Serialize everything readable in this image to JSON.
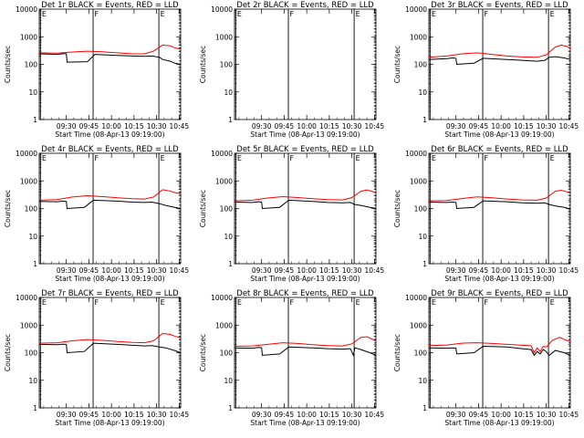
{
  "colors": {
    "events": "#000000",
    "lld": "#ff0000",
    "axis": "#000000",
    "background": "#ffffff"
  },
  "chart_data": [
    {
      "type": "line",
      "title": "Det 1r BLACK = Events, RED = LLD",
      "xlabel": "Start Time (08-Apr-13 09:19:00)",
      "ylabel": "Counts/sec",
      "x_ticks": [
        "09:30",
        "09:45",
        "10:00",
        "10:15",
        "10:30",
        "10:45"
      ],
      "y_ticks": [
        "1",
        "10",
        "100",
        "1000",
        "10000"
      ],
      "yscale": "log",
      "ylim": [
        1,
        10000
      ],
      "xlim_min": [
        8,
        102
      ],
      "x_tick_min": [
        26,
        41,
        56,
        71,
        86,
        101
      ],
      "series": [
        {
          "x": [
            8,
            20,
            24,
            26,
            26.5,
            40,
            45,
            60,
            70,
            78,
            83,
            88,
            90,
            95,
            98,
            102
          ],
          "y": [
            240,
            230,
            245,
            240,
            120,
            125,
            230,
            210,
            200,
            195,
            200,
            180,
            150,
            130,
            110,
            100
          ]
        },
        {
          "x": [
            8,
            20,
            30,
            40,
            50,
            60,
            70,
            78,
            84,
            90,
            95,
            98,
            102
          ],
          "y": [
            260,
            255,
            280,
            300,
            285,
            260,
            240,
            240,
            300,
            500,
            470,
            400,
            350
          ]
        }
      ],
      "markers": [
        {
          "label": "E",
          "x": 8.8,
          "style": "solid"
        },
        {
          "label": "F",
          "x": 43.8,
          "style": "solid"
        },
        {
          "label": "E",
          "x": 87.5,
          "style": "solid"
        },
        {
          "label": "",
          "x": 102.5,
          "style": "dotted"
        }
      ]
    },
    {
      "type": "line",
      "title": "Det 2r BLACK = Events, RED = LLD",
      "xlabel": "Start Time (08-Apr-13 09:19:00)",
      "ylabel": "Counts/sec",
      "x_ticks": [
        "09:30",
        "09:45",
        "10:00",
        "10:15",
        "10:30",
        "10:45"
      ],
      "y_ticks": [
        "1",
        "10",
        "100",
        "1000",
        "10000"
      ],
      "yscale": "log",
      "ylim": [
        1,
        10000
      ],
      "xlim_min": [
        8,
        102
      ],
      "x_tick_min": [
        26,
        41,
        56,
        71,
        86,
        101
      ],
      "series": [],
      "markers": [
        {
          "label": "E",
          "x": 8.8,
          "style": "solid"
        },
        {
          "label": "F",
          "x": 43.8,
          "style": "solid"
        },
        {
          "label": "E",
          "x": 87.5,
          "style": "solid"
        },
        {
          "label": "",
          "x": 102.5,
          "style": "dotted"
        }
      ]
    },
    {
      "type": "line",
      "title": "Det 3r BLACK = Events, RED = LLD",
      "xlabel": "Start Time (08-Apr-13 09:19:00)",
      "ylabel": "Counts/sec",
      "x_ticks": [
        "09:30",
        "09:45",
        "10:00",
        "10:15",
        "10:30",
        "10:45"
      ],
      "y_ticks": [
        "1",
        "10",
        "100",
        "1000",
        "10000"
      ],
      "yscale": "log",
      "ylim": [
        1,
        10000
      ],
      "xlim_min": [
        8,
        102
      ],
      "x_tick_min": [
        26,
        41,
        56,
        71,
        86,
        101
      ],
      "series": [
        {
          "x": [
            8,
            20,
            24,
            26,
            26.5,
            38,
            44,
            60,
            70,
            80,
            85,
            88,
            92,
            98,
            102
          ],
          "y": [
            150,
            160,
            170,
            165,
            100,
            110,
            165,
            150,
            140,
            130,
            140,
            180,
            190,
            170,
            150
          ]
        },
        {
          "x": [
            8,
            20,
            30,
            40,
            50,
            60,
            70,
            80,
            86,
            92,
            96,
            100,
            102
          ],
          "y": [
            180,
            200,
            240,
            260,
            230,
            200,
            185,
            180,
            220,
            420,
            500,
            440,
            380
          ]
        }
      ],
      "markers": [
        {
          "label": "E",
          "x": 8.8,
          "style": "solid"
        },
        {
          "label": "F",
          "x": 43.8,
          "style": "solid"
        },
        {
          "label": "E",
          "x": 87.5,
          "style": "solid"
        },
        {
          "label": "",
          "x": 102.5,
          "style": "dotted"
        }
      ]
    },
    {
      "type": "line",
      "title": "Det 4r BLACK = Events, RED = LLD",
      "xlabel": "Start Time (08-Apr-13 09:19:00)",
      "ylabel": "Counts/sec",
      "x_ticks": [
        "09:30",
        "09:45",
        "10:00",
        "10:15",
        "10:30",
        "10:45"
      ],
      "y_ticks": [
        "1",
        "10",
        "100",
        "1000",
        "10000"
      ],
      "yscale": "log",
      "ylim": [
        1,
        10000
      ],
      "xlim_min": [
        8,
        102
      ],
      "x_tick_min": [
        26,
        41,
        56,
        71,
        86,
        101
      ],
      "series": [
        {
          "x": [
            8,
            20,
            24,
            26,
            26.5,
            38,
            44,
            60,
            70,
            78,
            83,
            88,
            92,
            98,
            102
          ],
          "y": [
            180,
            175,
            185,
            180,
            100,
            110,
            200,
            185,
            170,
            165,
            170,
            150,
            130,
            110,
            100
          ]
        },
        {
          "x": [
            8,
            20,
            30,
            40,
            50,
            60,
            70,
            78,
            84,
            90,
            95,
            98,
            102
          ],
          "y": [
            200,
            210,
            260,
            290,
            270,
            245,
            225,
            220,
            260,
            480,
            430,
            380,
            340
          ]
        }
      ],
      "markers": [
        {
          "label": "E",
          "x": 8.8,
          "style": "solid"
        },
        {
          "label": "F",
          "x": 43.8,
          "style": "solid"
        },
        {
          "label": "E",
          "x": 87.5,
          "style": "solid"
        },
        {
          "label": "",
          "x": 102.5,
          "style": "dotted"
        }
      ]
    },
    {
      "type": "line",
      "title": "Det 5r BLACK = Events, RED = LLD",
      "xlabel": "Start Time (08-Apr-13 09:19:00)",
      "ylabel": "Counts/sec",
      "x_ticks": [
        "09:30",
        "09:45",
        "10:00",
        "10:15",
        "10:30",
        "10:45"
      ],
      "y_ticks": [
        "1",
        "10",
        "100",
        "1000",
        "10000"
      ],
      "yscale": "log",
      "ylim": [
        1,
        10000
      ],
      "xlim_min": [
        8,
        102
      ],
      "x_tick_min": [
        26,
        41,
        56,
        71,
        86,
        101
      ],
      "series": [
        {
          "x": [
            8,
            20,
            24,
            26,
            26.5,
            38,
            44,
            60,
            70,
            80,
            85,
            88,
            92,
            98,
            102
          ],
          "y": [
            170,
            165,
            175,
            170,
            100,
            110,
            200,
            180,
            165,
            160,
            165,
            140,
            130,
            110,
            100
          ]
        },
        {
          "x": [
            8,
            20,
            30,
            40,
            50,
            60,
            70,
            80,
            86,
            92,
            96,
            100,
            102
          ],
          "y": [
            190,
            200,
            240,
            270,
            250,
            225,
            210,
            205,
            250,
            420,
            470,
            410,
            370
          ]
        }
      ],
      "markers": [
        {
          "label": "E",
          "x": 8.8,
          "style": "solid"
        },
        {
          "label": "F",
          "x": 43.8,
          "style": "solid"
        },
        {
          "label": "E",
          "x": 87.5,
          "style": "solid"
        },
        {
          "label": "",
          "x": 102.5,
          "style": "dotted"
        }
      ]
    },
    {
      "type": "line",
      "title": "Det 6r BLACK = Events, RED = LLD",
      "xlabel": "Start Time (08-Apr-13 09:19:00)",
      "ylabel": "Counts/sec",
      "x_ticks": [
        "09:30",
        "09:45",
        "10:00",
        "10:15",
        "10:30",
        "10:45"
      ],
      "y_ticks": [
        "1",
        "10",
        "100",
        "1000",
        "10000"
      ],
      "yscale": "log",
      "ylim": [
        1,
        10000
      ],
      "xlim_min": [
        8,
        102
      ],
      "x_tick_min": [
        26,
        41,
        56,
        71,
        86,
        101
      ],
      "series": [
        {
          "x": [
            8,
            20,
            24,
            26,
            26.5,
            38,
            44,
            60,
            70,
            80,
            85,
            88,
            92,
            98,
            102
          ],
          "y": [
            170,
            165,
            170,
            165,
            100,
            110,
            190,
            175,
            160,
            155,
            160,
            140,
            125,
            110,
            95
          ]
        },
        {
          "x": [
            8,
            20,
            30,
            40,
            50,
            60,
            70,
            80,
            86,
            92,
            96,
            100,
            102
          ],
          "y": [
            190,
            195,
            230,
            265,
            245,
            220,
            205,
            200,
            240,
            420,
            460,
            400,
            360
          ]
        }
      ],
      "markers": [
        {
          "label": "E",
          "x": 8.8,
          "style": "solid"
        },
        {
          "label": "F",
          "x": 43.8,
          "style": "solid"
        },
        {
          "label": "E",
          "x": 87.5,
          "style": "solid"
        },
        {
          "label": "",
          "x": 102.5,
          "style": "dotted"
        }
      ]
    },
    {
      "type": "line",
      "title": "Det 7r BLACK = Events, RED = LLD",
      "xlabel": "Start Time (08-Apr-13 09:19:00)",
      "ylabel": "Counts/sec",
      "x_ticks": [
        "09:30",
        "09:45",
        "10:00",
        "10:15",
        "10:30",
        "10:45"
      ],
      "y_ticks": [
        "1",
        "10",
        "100",
        "1000",
        "10000"
      ],
      "yscale": "log",
      "ylim": [
        1,
        10000
      ],
      "xlim_min": [
        8,
        102
      ],
      "x_tick_min": [
        26,
        41,
        56,
        71,
        86,
        101
      ],
      "series": [
        {
          "x": [
            8,
            20,
            24,
            26,
            26.5,
            38,
            44,
            60,
            70,
            78,
            83,
            88,
            92,
            98,
            102
          ],
          "y": [
            200,
            195,
            205,
            200,
            100,
            110,
            220,
            200,
            185,
            175,
            180,
            160,
            150,
            120,
            100
          ]
        },
        {
          "x": [
            8,
            20,
            30,
            40,
            50,
            60,
            70,
            78,
            84,
            90,
            95,
            98,
            102
          ],
          "y": [
            220,
            230,
            270,
            300,
            280,
            255,
            235,
            230,
            270,
            500,
            460,
            400,
            340
          ]
        }
      ],
      "markers": [
        {
          "label": "E",
          "x": 8.8,
          "style": "solid"
        },
        {
          "label": "F",
          "x": 43.8,
          "style": "solid"
        },
        {
          "label": "E",
          "x": 87.5,
          "style": "solid"
        },
        {
          "label": "",
          "x": 102.5,
          "style": "dotted"
        }
      ]
    },
    {
      "type": "line",
      "title": "Det 8r BLACK = Events, RED = LLD",
      "xlabel": "Start Time (08-Apr-13 09:19:00)",
      "ylabel": "Counts/sec",
      "x_ticks": [
        "09:30",
        "09:45",
        "10:00",
        "10:15",
        "10:30",
        "10:45"
      ],
      "y_ticks": [
        "1",
        "10",
        "100",
        "1000",
        "10000"
      ],
      "yscale": "log",
      "ylim": [
        1,
        10000
      ],
      "xlim_min": [
        8,
        102
      ],
      "x_tick_min": [
        26,
        41,
        56,
        71,
        86,
        101
      ],
      "series": [
        {
          "x": [
            8,
            20,
            24,
            26,
            26.5,
            38,
            44,
            60,
            70,
            80,
            85,
            87,
            88,
            92,
            98,
            102
          ],
          "y": [
            150,
            145,
            155,
            150,
            80,
            90,
            160,
            150,
            140,
            135,
            140,
            80,
            150,
            130,
            100,
            80
          ]
        },
        {
          "x": [
            8,
            20,
            30,
            40,
            50,
            60,
            70,
            80,
            86,
            92,
            96,
            100,
            102
          ],
          "y": [
            170,
            175,
            200,
            230,
            215,
            195,
            180,
            175,
            210,
            360,
            380,
            300,
            260
          ]
        }
      ],
      "markers": [
        {
          "label": "E",
          "x": 8.8,
          "style": "solid"
        },
        {
          "label": "F",
          "x": 43.8,
          "style": "solid"
        },
        {
          "label": "E",
          "x": 87.5,
          "style": "solid"
        },
        {
          "label": "",
          "x": 102.5,
          "style": "dotted"
        }
      ]
    },
    {
      "type": "line",
      "title": "Det 9r BLACK = Events, RED = LLD",
      "xlabel": "Start Time (08-Apr-13 09:19:00)",
      "ylabel": "Counts/sec",
      "x_ticks": [
        "09:30",
        "09:45",
        "10:00",
        "10:15",
        "10:30",
        "10:45"
      ],
      "y_ticks": [
        "1",
        "10",
        "100",
        "1000",
        "10000"
      ],
      "yscale": "log",
      "ylim": [
        1,
        10000
      ],
      "xlim_min": [
        8,
        102
      ],
      "x_tick_min": [
        26,
        41,
        56,
        71,
        86,
        101
      ],
      "series": [
        {
          "x": [
            8,
            20,
            24,
            26,
            26.5,
            38,
            44,
            60,
            70,
            76,
            78,
            80,
            82,
            84,
            86,
            88,
            92,
            98,
            102
          ],
          "y": [
            150,
            145,
            150,
            145,
            90,
            100,
            170,
            160,
            140,
            130,
            80,
            110,
            90,
            130,
            110,
            80,
            120,
            100,
            80
          ]
        },
        {
          "x": [
            8,
            20,
            30,
            40,
            50,
            60,
            70,
            76,
            78,
            80,
            82,
            84,
            86,
            90,
            95,
            98,
            102
          ],
          "y": [
            180,
            190,
            220,
            230,
            215,
            200,
            185,
            180,
            100,
            150,
            110,
            170,
            160,
            280,
            360,
            300,
            250
          ]
        }
      ],
      "markers": [
        {
          "label": "E",
          "x": 8.8,
          "style": "solid"
        },
        {
          "label": "F",
          "x": 43.8,
          "style": "solid"
        },
        {
          "label": "E",
          "x": 87.5,
          "style": "solid"
        },
        {
          "label": "",
          "x": 102.5,
          "style": "dotted"
        }
      ]
    }
  ]
}
